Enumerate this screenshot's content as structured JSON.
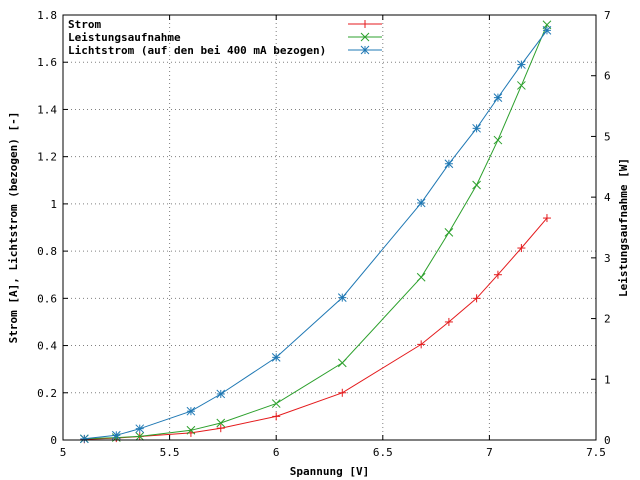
{
  "chart_data": {
    "type": "line",
    "xlabel": "Spannung [V]",
    "ylabel": "Strom [A], Lichtstrom (bezogen) [-]",
    "y2label": "Leistungsaufnahme [W]",
    "xlim": [
      5,
      7.5
    ],
    "ylim": [
      0,
      1.8
    ],
    "y2lim": [
      0,
      7
    ],
    "grid": true,
    "legend_position": "top-left",
    "x_ticks": [
      "5",
      "5.5",
      "6",
      "6.5",
      "7",
      "7.5"
    ],
    "y_ticks": [
      "0",
      "0.2",
      "0.4",
      "0.6",
      "0.8",
      "1",
      "1.2",
      "1.4",
      "1.6",
      "1.8"
    ],
    "y2_ticks": [
      "0",
      "1",
      "2",
      "3",
      "4",
      "5",
      "6",
      "7"
    ],
    "series": [
      {
        "name": "Strom",
        "axis": "left",
        "color": "#e41a1c",
        "marker": "plus",
        "points": [
          [
            5.1,
            0.003
          ],
          [
            5.25,
            0.008
          ],
          [
            5.36,
            0.015
          ],
          [
            5.6,
            0.03
          ],
          [
            5.74,
            0.05
          ],
          [
            6.0,
            0.1
          ],
          [
            6.31,
            0.2
          ],
          [
            6.68,
            0.405
          ],
          [
            6.81,
            0.5
          ],
          [
            6.94,
            0.6
          ],
          [
            7.04,
            0.7
          ],
          [
            7.15,
            0.813
          ],
          [
            7.27,
            0.94
          ]
        ]
      },
      {
        "name": "Leistungsaufnahme",
        "axis": "right",
        "color": "#2ca02c",
        "marker": "cross",
        "points": [
          [
            5.1,
            0.02
          ],
          [
            5.25,
            0.04
          ],
          [
            5.36,
            0.06
          ],
          [
            5.6,
            0.16
          ],
          [
            5.74,
            0.28
          ],
          [
            6.0,
            0.6
          ],
          [
            6.31,
            1.27
          ],
          [
            6.68,
            2.68
          ],
          [
            6.81,
            3.42
          ],
          [
            6.94,
            4.2
          ],
          [
            7.04,
            4.94
          ],
          [
            7.15,
            5.84
          ],
          [
            7.27,
            6.84
          ]
        ]
      },
      {
        "name": "Lichtstrom (auf den bei 400 mA bezogen)",
        "axis": "left",
        "color": "#1f78b4",
        "marker": "star",
        "points": [
          [
            5.1,
            0.005
          ],
          [
            5.25,
            0.02
          ],
          [
            5.36,
            0.048
          ],
          [
            5.6,
            0.122
          ],
          [
            5.74,
            0.195
          ],
          [
            6.0,
            0.35
          ],
          [
            6.31,
            0.603
          ],
          [
            6.68,
            1.004
          ],
          [
            6.81,
            1.17
          ],
          [
            6.94,
            1.32
          ],
          [
            7.04,
            1.45
          ],
          [
            7.15,
            1.59
          ],
          [
            7.27,
            1.735
          ]
        ]
      }
    ]
  }
}
